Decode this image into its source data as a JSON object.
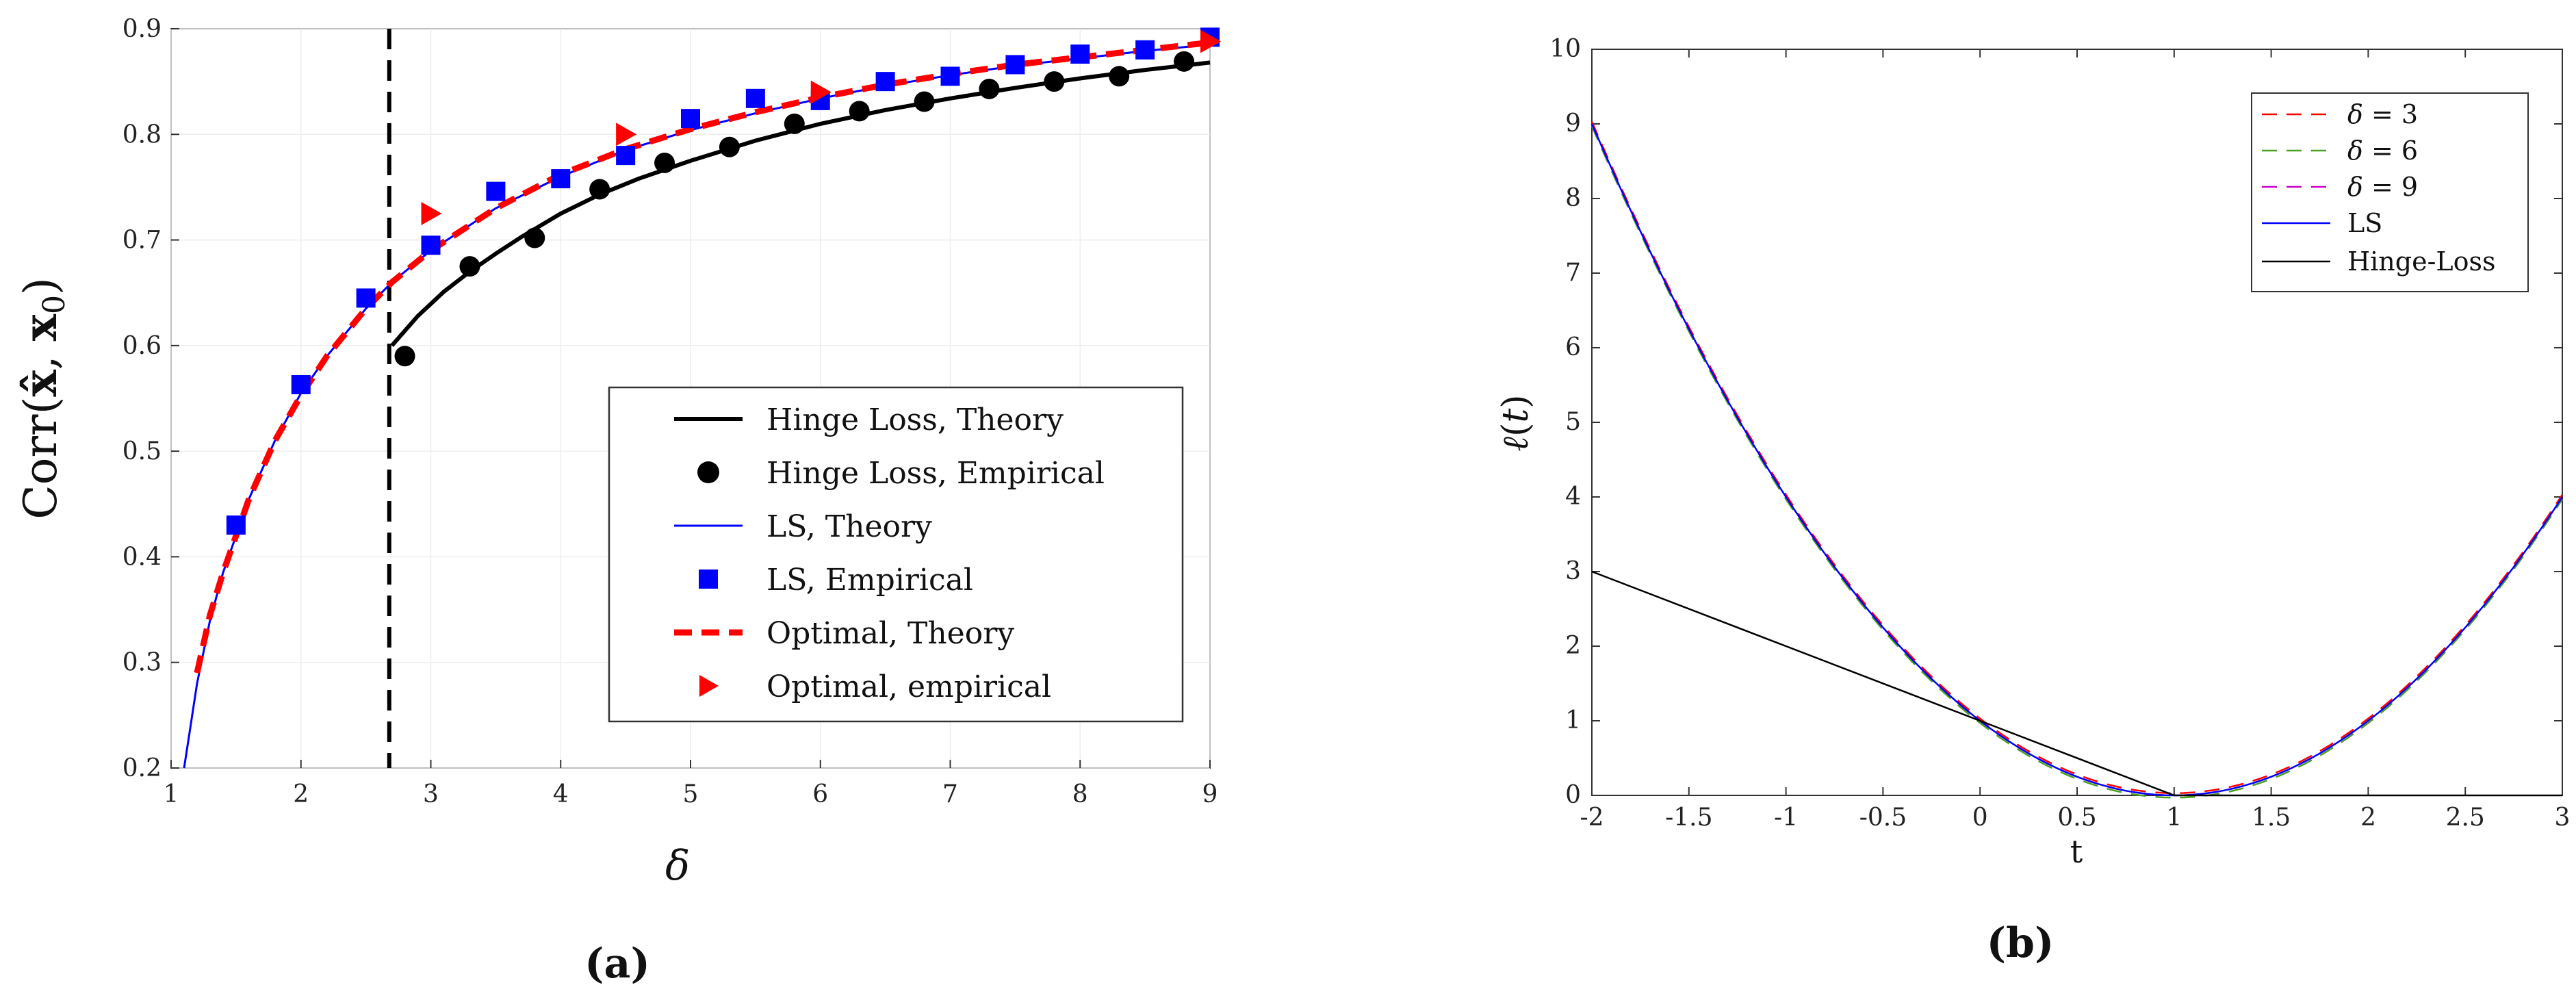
{
  "chart_data": [
    {
      "id": "a",
      "type": "line",
      "panel_label": "(a)",
      "xlabel": "δ",
      "ylabel_parts": [
        "Corr(",
        "x̂",
        ", ",
        "x",
        "0",
        ")"
      ],
      "xlim": [
        1,
        9
      ],
      "ylim": [
        0.2,
        0.9
      ],
      "xticks": [
        1,
        2,
        3,
        4,
        5,
        6,
        7,
        8,
        9
      ],
      "yticks": [
        0.2,
        0.3,
        0.4,
        0.5,
        0.6,
        0.7,
        0.8,
        0.9
      ],
      "vline_x": 2.68,
      "colors": {
        "hinge": "#000000",
        "ls": "#0000ff",
        "optimal": "#ff0000"
      },
      "legend": [
        "Hinge Loss, Theory",
        "Hinge Loss, Empirical",
        "LS, Theory",
        "LS, Empirical",
        "Optimal, Theory",
        "Optimal, empirical"
      ],
      "series": [
        {
          "name": "Hinge Loss, Theory",
          "style": "line",
          "x": [
            2.7,
            2.9,
            3.1,
            3.3,
            3.5,
            3.7,
            4.0,
            4.3,
            4.6,
            5.0,
            5.5,
            6.0,
            6.5,
            7.0,
            7.5,
            8.0,
            8.5,
            9.0
          ],
          "y": [
            0.6,
            0.628,
            0.651,
            0.67,
            0.687,
            0.703,
            0.725,
            0.743,
            0.758,
            0.775,
            0.794,
            0.81,
            0.823,
            0.834,
            0.844,
            0.853,
            0.861,
            0.868
          ]
        },
        {
          "name": "Hinge Loss, Empirical",
          "style": "circle",
          "x": [
            2.8,
            3.3,
            3.8,
            4.3,
            4.8,
            5.3,
            5.8,
            6.3,
            6.8,
            7.3,
            7.8,
            8.3,
            8.8
          ],
          "y": [
            0.59,
            0.675,
            0.702,
            0.748,
            0.773,
            0.788,
            0.81,
            0.822,
            0.831,
            0.843,
            0.85,
            0.855,
            0.869
          ]
        },
        {
          "name": "LS, Theory",
          "style": "line",
          "x": [
            1.1,
            1.15,
            1.2,
            1.3,
            1.4,
            1.5,
            1.6,
            1.8,
            2.0,
            2.2,
            2.5,
            2.7,
            3.0,
            3.5,
            4.0,
            4.5,
            5.0,
            5.5,
            6.0,
            6.5,
            7.0,
            7.5,
            8.0,
            8.5,
            9.0
          ],
          "y": [
            0.2,
            0.24,
            0.28,
            0.34,
            0.385,
            0.42,
            0.455,
            0.51,
            0.555,
            0.59,
            0.635,
            0.66,
            0.69,
            0.73,
            0.76,
            0.785,
            0.804,
            0.82,
            0.834,
            0.846,
            0.856,
            0.865,
            0.872,
            0.879,
            0.885
          ]
        },
        {
          "name": "LS, Empirical",
          "style": "square",
          "x": [
            1.5,
            2.0,
            2.5,
            3.0,
            3.5,
            4.0,
            4.5,
            5.0,
            5.5,
            6.0,
            6.5,
            7.0,
            7.5,
            8.0,
            8.5,
            9.0
          ],
          "y": [
            0.43,
            0.563,
            0.645,
            0.695,
            0.746,
            0.758,
            0.78,
            0.815,
            0.834,
            0.832,
            0.85,
            0.855,
            0.866,
            0.876,
            0.88,
            0.892
          ]
        },
        {
          "name": "Optimal, Theory",
          "style": "dashed",
          "x": [
            1.2,
            1.3,
            1.4,
            1.5,
            1.6,
            1.8,
            2.0,
            2.2,
            2.5,
            2.7,
            3.0,
            3.5,
            4.0,
            4.5,
            5.0,
            5.5,
            6.0,
            6.5,
            7.0,
            7.5,
            8.0,
            8.5,
            9.0
          ],
          "y": [
            0.29,
            0.345,
            0.385,
            0.42,
            0.455,
            0.51,
            0.553,
            0.59,
            0.635,
            0.66,
            0.69,
            0.73,
            0.762,
            0.786,
            0.805,
            0.821,
            0.835,
            0.847,
            0.857,
            0.866,
            0.873,
            0.88,
            0.887
          ]
        },
        {
          "name": "Optimal, empirical",
          "style": "triangle",
          "x": [
            3.0,
            4.5,
            6.0,
            9.0
          ],
          "y": [
            0.725,
            0.8,
            0.84,
            0.888
          ]
        }
      ]
    },
    {
      "id": "b",
      "type": "line",
      "panel_label": "(b)",
      "xlabel": "t",
      "ylabel_parts": [
        "ℓ",
        "(",
        "t",
        ")"
      ],
      "xlim": [
        -2,
        3
      ],
      "ylim": [
        0,
        10
      ],
      "xticks": [
        -2,
        -1.5,
        -1,
        -0.5,
        0,
        0.5,
        1,
        1.5,
        2,
        2.5,
        3
      ],
      "xtick_labels": [
        "-2",
        "-1.5",
        "-1",
        "-0.5",
        "0",
        "0.5",
        "1",
        "1.5",
        "2",
        "2.5",
        "3"
      ],
      "yticks": [
        0,
        1,
        2,
        3,
        4,
        5,
        6,
        7,
        8,
        9,
        10
      ],
      "colors": {
        "d3": "#ff0000",
        "d6": "#4aa020",
        "d9": "#cc00cc",
        "ls": "#0000ff",
        "hinge": "#000000"
      },
      "legend": [
        {
          "sym": "δ",
          "eq": " = 3"
        },
        {
          "sym": "δ",
          "eq": " = 6"
        },
        {
          "sym": "δ",
          "eq": " = 9"
        },
        {
          "text": "LS"
        },
        {
          "text": "Hinge-Loss"
        }
      ],
      "series": [
        {
          "name": "δ = 3",
          "style": "dashed",
          "function": "(t-1)^2",
          "offset": 0.03,
          "x_range": [
            -2,
            3
          ]
        },
        {
          "name": "δ = 6",
          "style": "dashed",
          "function": "(t-1)^2",
          "offset": -0.03,
          "x_range": [
            -2,
            3
          ]
        },
        {
          "name": "δ = 9",
          "style": "dashed",
          "function": "(t-1)^2",
          "offset": 0.0,
          "x_range": [
            -2,
            3
          ]
        },
        {
          "name": "LS",
          "style": "line",
          "function": "(t-1)^2",
          "x_range": [
            -2,
            3
          ]
        },
        {
          "name": "Hinge-Loss",
          "style": "line",
          "x": [
            -2,
            1,
            3
          ],
          "y": [
            3,
            0,
            0
          ]
        }
      ]
    }
  ]
}
